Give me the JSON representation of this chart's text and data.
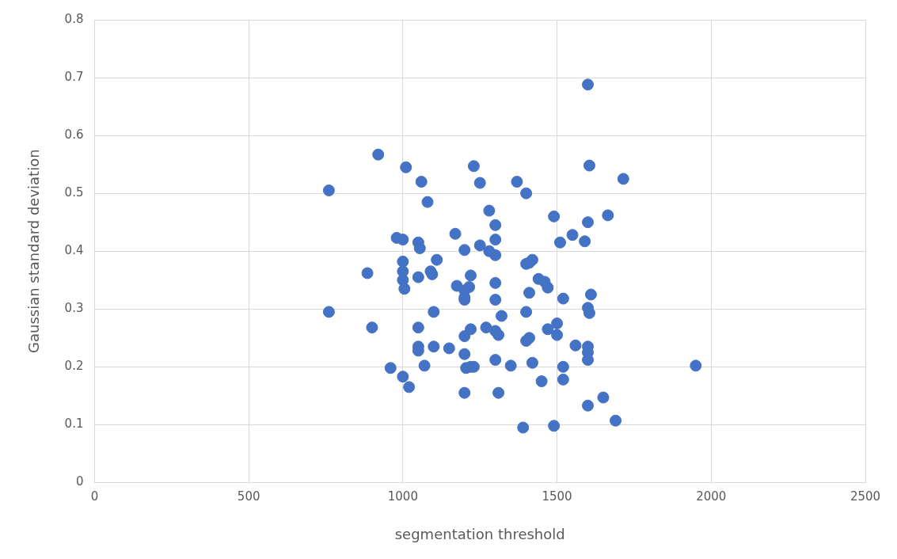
{
  "chart_data": {
    "type": "scatter",
    "xlabel": "segmentation threshold",
    "ylabel": "Gaussian standard deviation",
    "xlim": [
      0,
      2500
    ],
    "xticks": [
      0,
      500,
      1000,
      1500,
      2000,
      2500
    ],
    "ylim": [
      0,
      0.8
    ],
    "yticks": [
      0,
      0.1,
      0.2,
      0.3,
      0.4,
      0.5,
      0.6,
      0.7,
      0.8
    ],
    "grid": true,
    "marker": "circle",
    "series": [
      {
        "color": "#4472c4",
        "x": [
          760,
          760,
          885,
          900,
          920,
          960,
          980,
          1000,
          1000,
          1000,
          1000,
          1005,
          1000,
          1010,
          1020,
          1050,
          1055,
          1050,
          1050,
          1050,
          1050,
          1060,
          1070,
          1080,
          1090,
          1095,
          1100,
          1100,
          1110,
          1150,
          1170,
          1175,
          1200,
          1200,
          1200,
          1200,
          1200,
          1200,
          1205,
          1200,
          1215,
          1220,
          1220,
          1220,
          1230,
          1230,
          1250,
          1250,
          1270,
          1280,
          1280,
          1300,
          1300,
          1300,
          1300,
          1300,
          1300,
          1310,
          1300,
          1310,
          1320,
          1350,
          1370,
          1390,
          1400,
          1400,
          1410,
          1420,
          1400,
          1400,
          1410,
          1410,
          1420,
          1440,
          1460,
          1470,
          1450,
          1470,
          1490,
          1490,
          1500,
          1500,
          1510,
          1520,
          1520,
          1520,
          1550,
          1560,
          1590,
          1600,
          1600,
          1605,
          1600,
          1605,
          1610,
          1600,
          1600,
          1600,
          1600,
          1650,
          1665,
          1690,
          1715,
          1950
        ],
        "values": [
          0.505,
          0.295,
          0.362,
          0.268,
          0.567,
          0.198,
          0.423,
          0.42,
          0.382,
          0.365,
          0.35,
          0.335,
          0.183,
          0.545,
          0.165,
          0.415,
          0.405,
          0.355,
          0.268,
          0.235,
          0.228,
          0.52,
          0.202,
          0.485,
          0.365,
          0.36,
          0.295,
          0.235,
          0.385,
          0.232,
          0.43,
          0.34,
          0.402,
          0.332,
          0.32,
          0.316,
          0.253,
          0.222,
          0.198,
          0.155,
          0.338,
          0.358,
          0.265,
          0.2,
          0.2,
          0.547,
          0.518,
          0.41,
          0.268,
          0.47,
          0.4,
          0.445,
          0.42,
          0.393,
          0.345,
          0.316,
          0.262,
          0.255,
          0.212,
          0.155,
          0.288,
          0.202,
          0.52,
          0.095,
          0.5,
          0.378,
          0.38,
          0.385,
          0.295,
          0.245,
          0.25,
          0.328,
          0.207,
          0.352,
          0.347,
          0.337,
          0.175,
          0.265,
          0.46,
          0.098,
          0.275,
          0.255,
          0.415,
          0.318,
          0.2,
          0.178,
          0.428,
          0.237,
          0.417,
          0.688,
          0.45,
          0.548,
          0.302,
          0.293,
          0.325,
          0.235,
          0.225,
          0.212,
          0.133,
          0.147,
          0.462,
          0.107,
          0.525,
          0.202
        ]
      }
    ]
  }
}
